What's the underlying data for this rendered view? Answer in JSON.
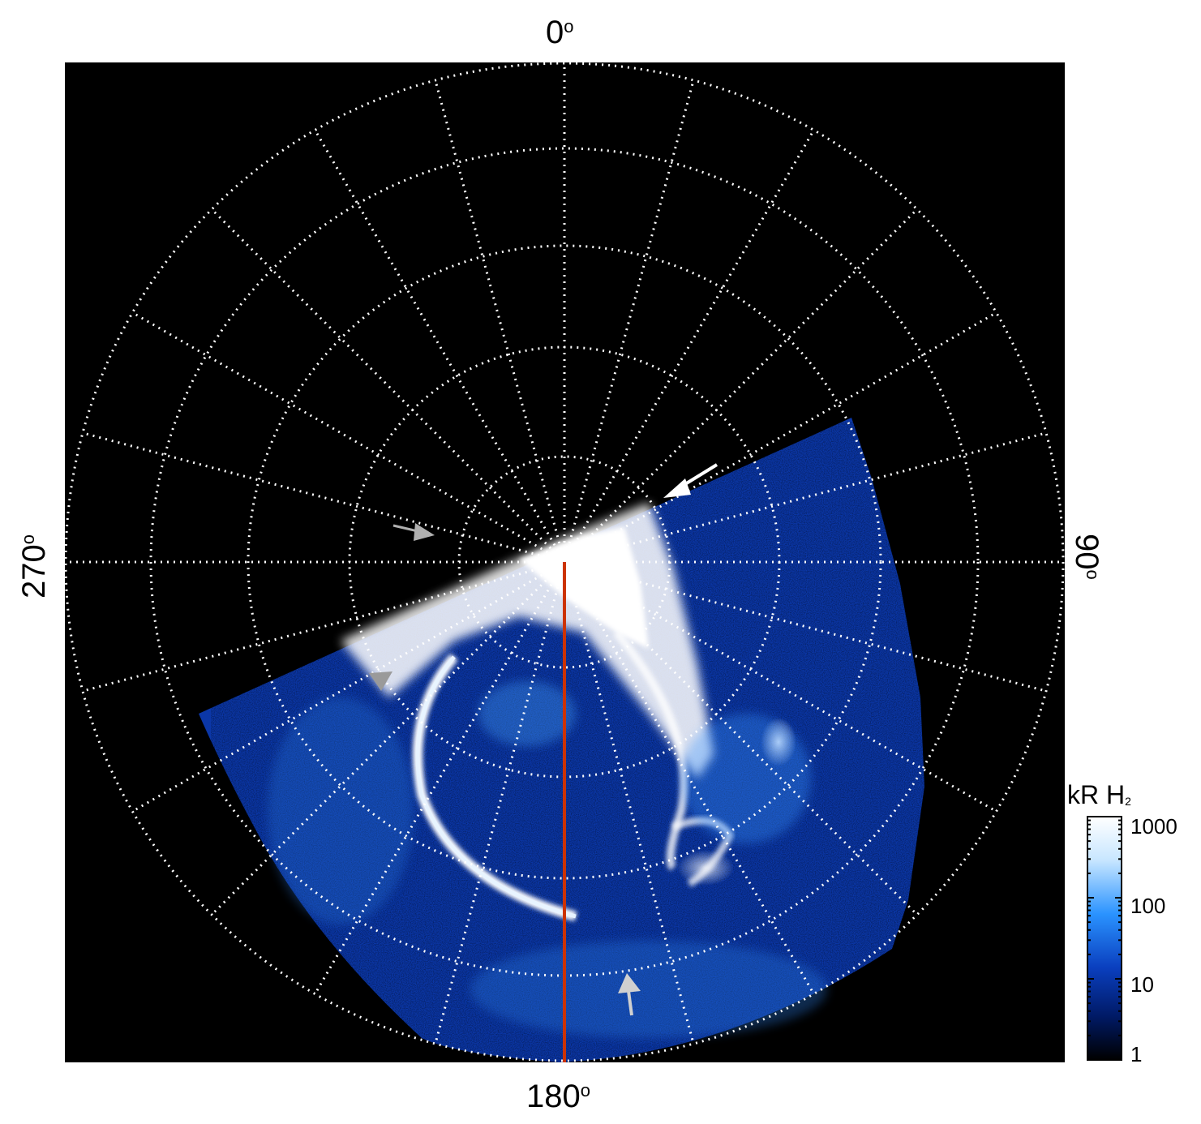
{
  "longitude_labels": {
    "top": "0",
    "right": "90",
    "bottom": "180",
    "left": "270",
    "degree_symbol": "o"
  },
  "colorbar": {
    "title": "kR H",
    "title_subscript": "2",
    "tick_labels": [
      "1000",
      "100",
      "10",
      "1"
    ],
    "colors": [
      "#ffffff",
      "#c7e6ff",
      "#2a93ff",
      "#0a3fbf",
      "#001a66",
      "#000000"
    ]
  },
  "colors": {
    "background": "#000000",
    "grid": "#ffffff",
    "meridian_line": "#cc3300",
    "aurora_bright": "#ffffff",
    "aurora_mid": "#2a8cff",
    "aurora_dark": "#0a2a9c",
    "arrow_white": "#ffffff",
    "arrow_grey": "#b0b0b0"
  }
}
